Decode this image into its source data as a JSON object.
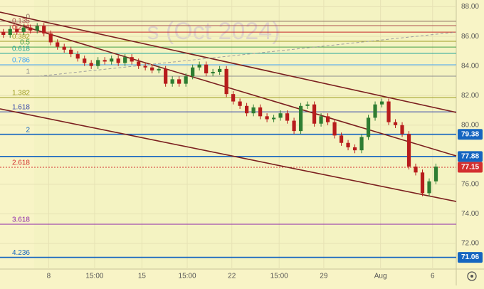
{
  "chart_data": {
    "type": "candlestick",
    "watermark": "s (Oct 2024)",
    "open": [
      86.3,
      86.1,
      86.5,
      86.3,
      86.6,
      86.4,
      86.7,
      86.2,
      85.6,
      85.3,
      85.1,
      84.8,
      84.5,
      84.2,
      84.0,
      84.4,
      84.3,
      84.5,
      84.2,
      84.6,
      84.3,
      84.0,
      83.9,
      83.7,
      83.8,
      82.8,
      83.1,
      82.8,
      83.3,
      83.9,
      84.1,
      83.5,
      83.6,
      83.8,
      82.1,
      81.6,
      81.3,
      80.8,
      81.2,
      80.6,
      80.4,
      80.5,
      80.8,
      80.3,
      79.6,
      81.3,
      81.4,
      80.1,
      80.6,
      80.2,
      79.3,
      78.8,
      78.5,
      78.3,
      79.2,
      80.5,
      81.4,
      81.6,
      80.2,
      80.0,
      79.4,
      77.2,
      76.8,
      75.4,
      76.2
    ],
    "high": [
      86.5,
      86.7,
      86.7,
      86.8,
      86.8,
      86.9,
      86.9,
      86.4,
      85.8,
      85.5,
      85.3,
      85.0,
      84.7,
      84.4,
      84.6,
      84.6,
      84.7,
      84.7,
      84.8,
      84.8,
      84.5,
      84.2,
      84.1,
      84.0,
      84.0,
      83.3,
      83.3,
      83.5,
      84.1,
      84.3,
      84.3,
      83.8,
      84.0,
      84.0,
      82.3,
      81.8,
      81.5,
      81.4,
      81.4,
      80.8,
      80.7,
      81.0,
      81.0,
      80.5,
      81.5,
      81.6,
      81.6,
      80.8,
      80.8,
      80.4,
      79.5,
      79.0,
      78.7,
      79.4,
      80.7,
      81.6,
      81.8,
      81.8,
      80.4,
      80.2,
      79.6,
      77.4,
      77.0,
      76.4,
      77.4
    ],
    "low": [
      85.9,
      85.9,
      86.1,
      86.1,
      86.2,
      86.2,
      86.0,
      85.4,
      85.1,
      84.9,
      84.6,
      84.3,
      84.0,
      83.8,
      83.8,
      84.1,
      84.1,
      84.0,
      84.0,
      84.1,
      83.8,
      83.7,
      83.5,
      83.5,
      82.6,
      82.6,
      82.6,
      82.6,
      83.1,
      83.7,
      83.3,
      83.3,
      83.4,
      81.9,
      81.4,
      81.1,
      80.6,
      80.6,
      80.4,
      80.2,
      80.2,
      80.3,
      80.1,
      79.4,
      79.4,
      81.1,
      79.9,
      79.9,
      80.0,
      79.1,
      78.6,
      78.3,
      78.1,
      78.1,
      79.0,
      80.3,
      81.2,
      80.0,
      79.8,
      79.2,
      77.0,
      76.6,
      75.2,
      75.2,
      76.0
    ],
    "close": [
      86.1,
      86.5,
      86.3,
      86.6,
      86.4,
      86.7,
      86.2,
      85.6,
      85.3,
      85.1,
      84.8,
      84.5,
      84.2,
      84.0,
      84.4,
      84.3,
      84.5,
      84.2,
      84.6,
      84.3,
      84.0,
      83.9,
      83.7,
      83.8,
      82.8,
      83.1,
      82.8,
      83.3,
      83.9,
      84.1,
      83.5,
      83.6,
      83.8,
      82.1,
      81.6,
      81.3,
      80.8,
      81.2,
      80.6,
      80.4,
      80.5,
      80.8,
      80.3,
      79.6,
      81.3,
      81.4,
      80.1,
      80.6,
      80.2,
      79.3,
      78.8,
      78.5,
      78.3,
      79.2,
      80.5,
      81.4,
      81.6,
      80.2,
      80.0,
      79.4,
      77.2,
      76.8,
      75.4,
      76.2,
      77.2
    ],
    "up_color": "#2e7d32",
    "down_color": "#b71c1c",
    "xlim": [
      -0.5,
      67
    ],
    "ylim": [
      70.27,
      88.46
    ],
    "grid": true,
    "xticks": [
      {
        "value": 6.7,
        "label": "8"
      },
      {
        "value": 13.5,
        "label": "15:00"
      },
      {
        "value": 20.5,
        "label": "15"
      },
      {
        "value": 27.2,
        "label": "15:00"
      },
      {
        "value": 33.8,
        "label": "22"
      },
      {
        "value": 40.8,
        "label": "15:00"
      },
      {
        "value": 47.4,
        "label": "29"
      },
      {
        "value": 55.8,
        "label": "Aug"
      },
      {
        "value": 63.5,
        "label": "6"
      }
    ],
    "yticks": [
      {
        "value": 88,
        "label": "88.00"
      },
      {
        "value": 86,
        "label": "86.00"
      },
      {
        "value": 84,
        "label": "84.00"
      },
      {
        "value": 82,
        "label": "82.00"
      },
      {
        "value": 80,
        "label": "80.00"
      },
      {
        "value": 76,
        "label": "76.00"
      },
      {
        "value": 74,
        "label": "74.00"
      },
      {
        "value": 72,
        "label": "72.00"
      }
    ],
    "fib_levels": [
      {
        "label": "0",
        "value": 87.02,
        "color": "#8d6e63"
      },
      {
        "label": "0.135",
        "value": 86.73,
        "color": "#b05050"
      },
      {
        "label": "0.236",
        "value": 86.29,
        "color": "#c62828"
      },
      {
        "label": "0.382",
        "value": 85.67,
        "color": "#9e9d24"
      },
      {
        "label": "0.5",
        "value": 85.28,
        "color": "#43a047"
      },
      {
        "label": "0.618",
        "value": 84.85,
        "color": "#26a69a"
      },
      {
        "label": "0.786",
        "value": 84.08,
        "color": "#42a5f5"
      },
      {
        "label": "1",
        "value": 83.31,
        "color": "#8d8d8d"
      },
      {
        "label": "1.382",
        "value": 81.87,
        "color": "#9e9d24"
      },
      {
        "label": "1.618",
        "value": 80.9,
        "color": "#3949ab"
      },
      {
        "label": "2",
        "value": 79.38,
        "color": "#1565c0"
      },
      {
        "label": "2.618",
        "value": 77.15,
        "color": "#d32f2f"
      },
      {
        "label": "3.618",
        "value": 73.3,
        "color": "#8e24aa"
      },
      {
        "label": "4.236",
        "value": 71.06,
        "color": "#1565c0"
      }
    ],
    "hlines": [
      {
        "value": 77.88,
        "color": "#1565c0"
      }
    ],
    "price_tags": [
      {
        "value": 79.38,
        "color": "#1565c0"
      },
      {
        "value": 77.88,
        "color": "#1565c0"
      },
      {
        "value": 77.15,
        "color": "#d32f2f"
      },
      {
        "value": 71.06,
        "color": "#1565c0"
      }
    ],
    "trendlines": [
      {
        "x": [
          -0.5,
          67
        ],
        "y": [
          87.64,
          80.86
        ],
        "color": "#7b1f1f",
        "dash": false
      },
      {
        "x": [
          -0.5,
          67
        ],
        "y": [
          87.16,
          77.92
        ],
        "color": "#7b1f1f",
        "dash": false
      },
      {
        "x": [
          -0.5,
          67
        ],
        "y": [
          81.1,
          74.84
        ],
        "color": "#7b1f1f",
        "dash": false
      },
      {
        "x": [
          5.29,
          67
        ],
        "y": [
          83.31,
          86.29
        ],
        "color": "#9e9e9e",
        "dash": true
      }
    ]
  }
}
